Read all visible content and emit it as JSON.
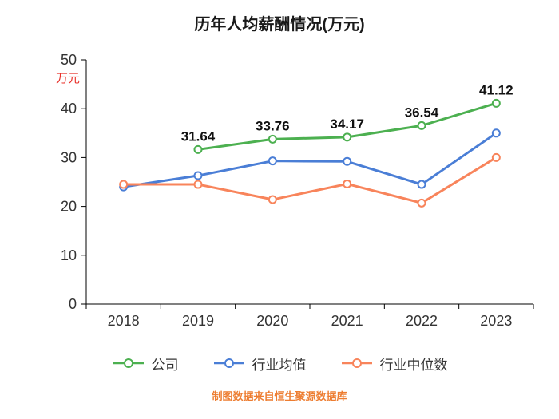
{
  "title": "历年人均薪酬情况(万元)",
  "footer": "制图数据来自恒生聚源数据库",
  "colors": {
    "y_axis_title": "#e8312a",
    "footer_text": "#ed7d31",
    "axis_line": "#000000",
    "tick_text": "#333333",
    "data_label": "#111111"
  },
  "chart_data": {
    "type": "line",
    "title": "历年人均薪酬情况(万元)",
    "categories": [
      "2018",
      "2019",
      "2020",
      "2021",
      "2022",
      "2023"
    ],
    "series": [
      {
        "name": "公司",
        "color": "#4cb050",
        "values": [
          null,
          31.64,
          33.76,
          34.17,
          36.54,
          41.12
        ],
        "point_labels": [
          "",
          "31.64",
          "33.76",
          "34.17",
          "36.54",
          "41.12"
        ]
      },
      {
        "name": "行业均值",
        "color": "#4a7ed6",
        "values": [
          24.0,
          26.3,
          29.3,
          29.2,
          24.5,
          35.0
        ],
        "point_labels": [
          "",
          "",
          "",
          "",
          "",
          ""
        ]
      },
      {
        "name": "行业中位数",
        "color": "#f8845b",
        "values": [
          24.5,
          24.5,
          21.4,
          24.6,
          20.7,
          30.0
        ],
        "point_labels": [
          "",
          "",
          "",
          "",
          "",
          ""
        ]
      }
    ],
    "ylabel": "万元",
    "ylim": [
      0,
      50
    ],
    "yticks": [
      0,
      10,
      20,
      30,
      40,
      50
    ],
    "grid": false,
    "legend_position": "bottom",
    "marker": "open-circle"
  }
}
